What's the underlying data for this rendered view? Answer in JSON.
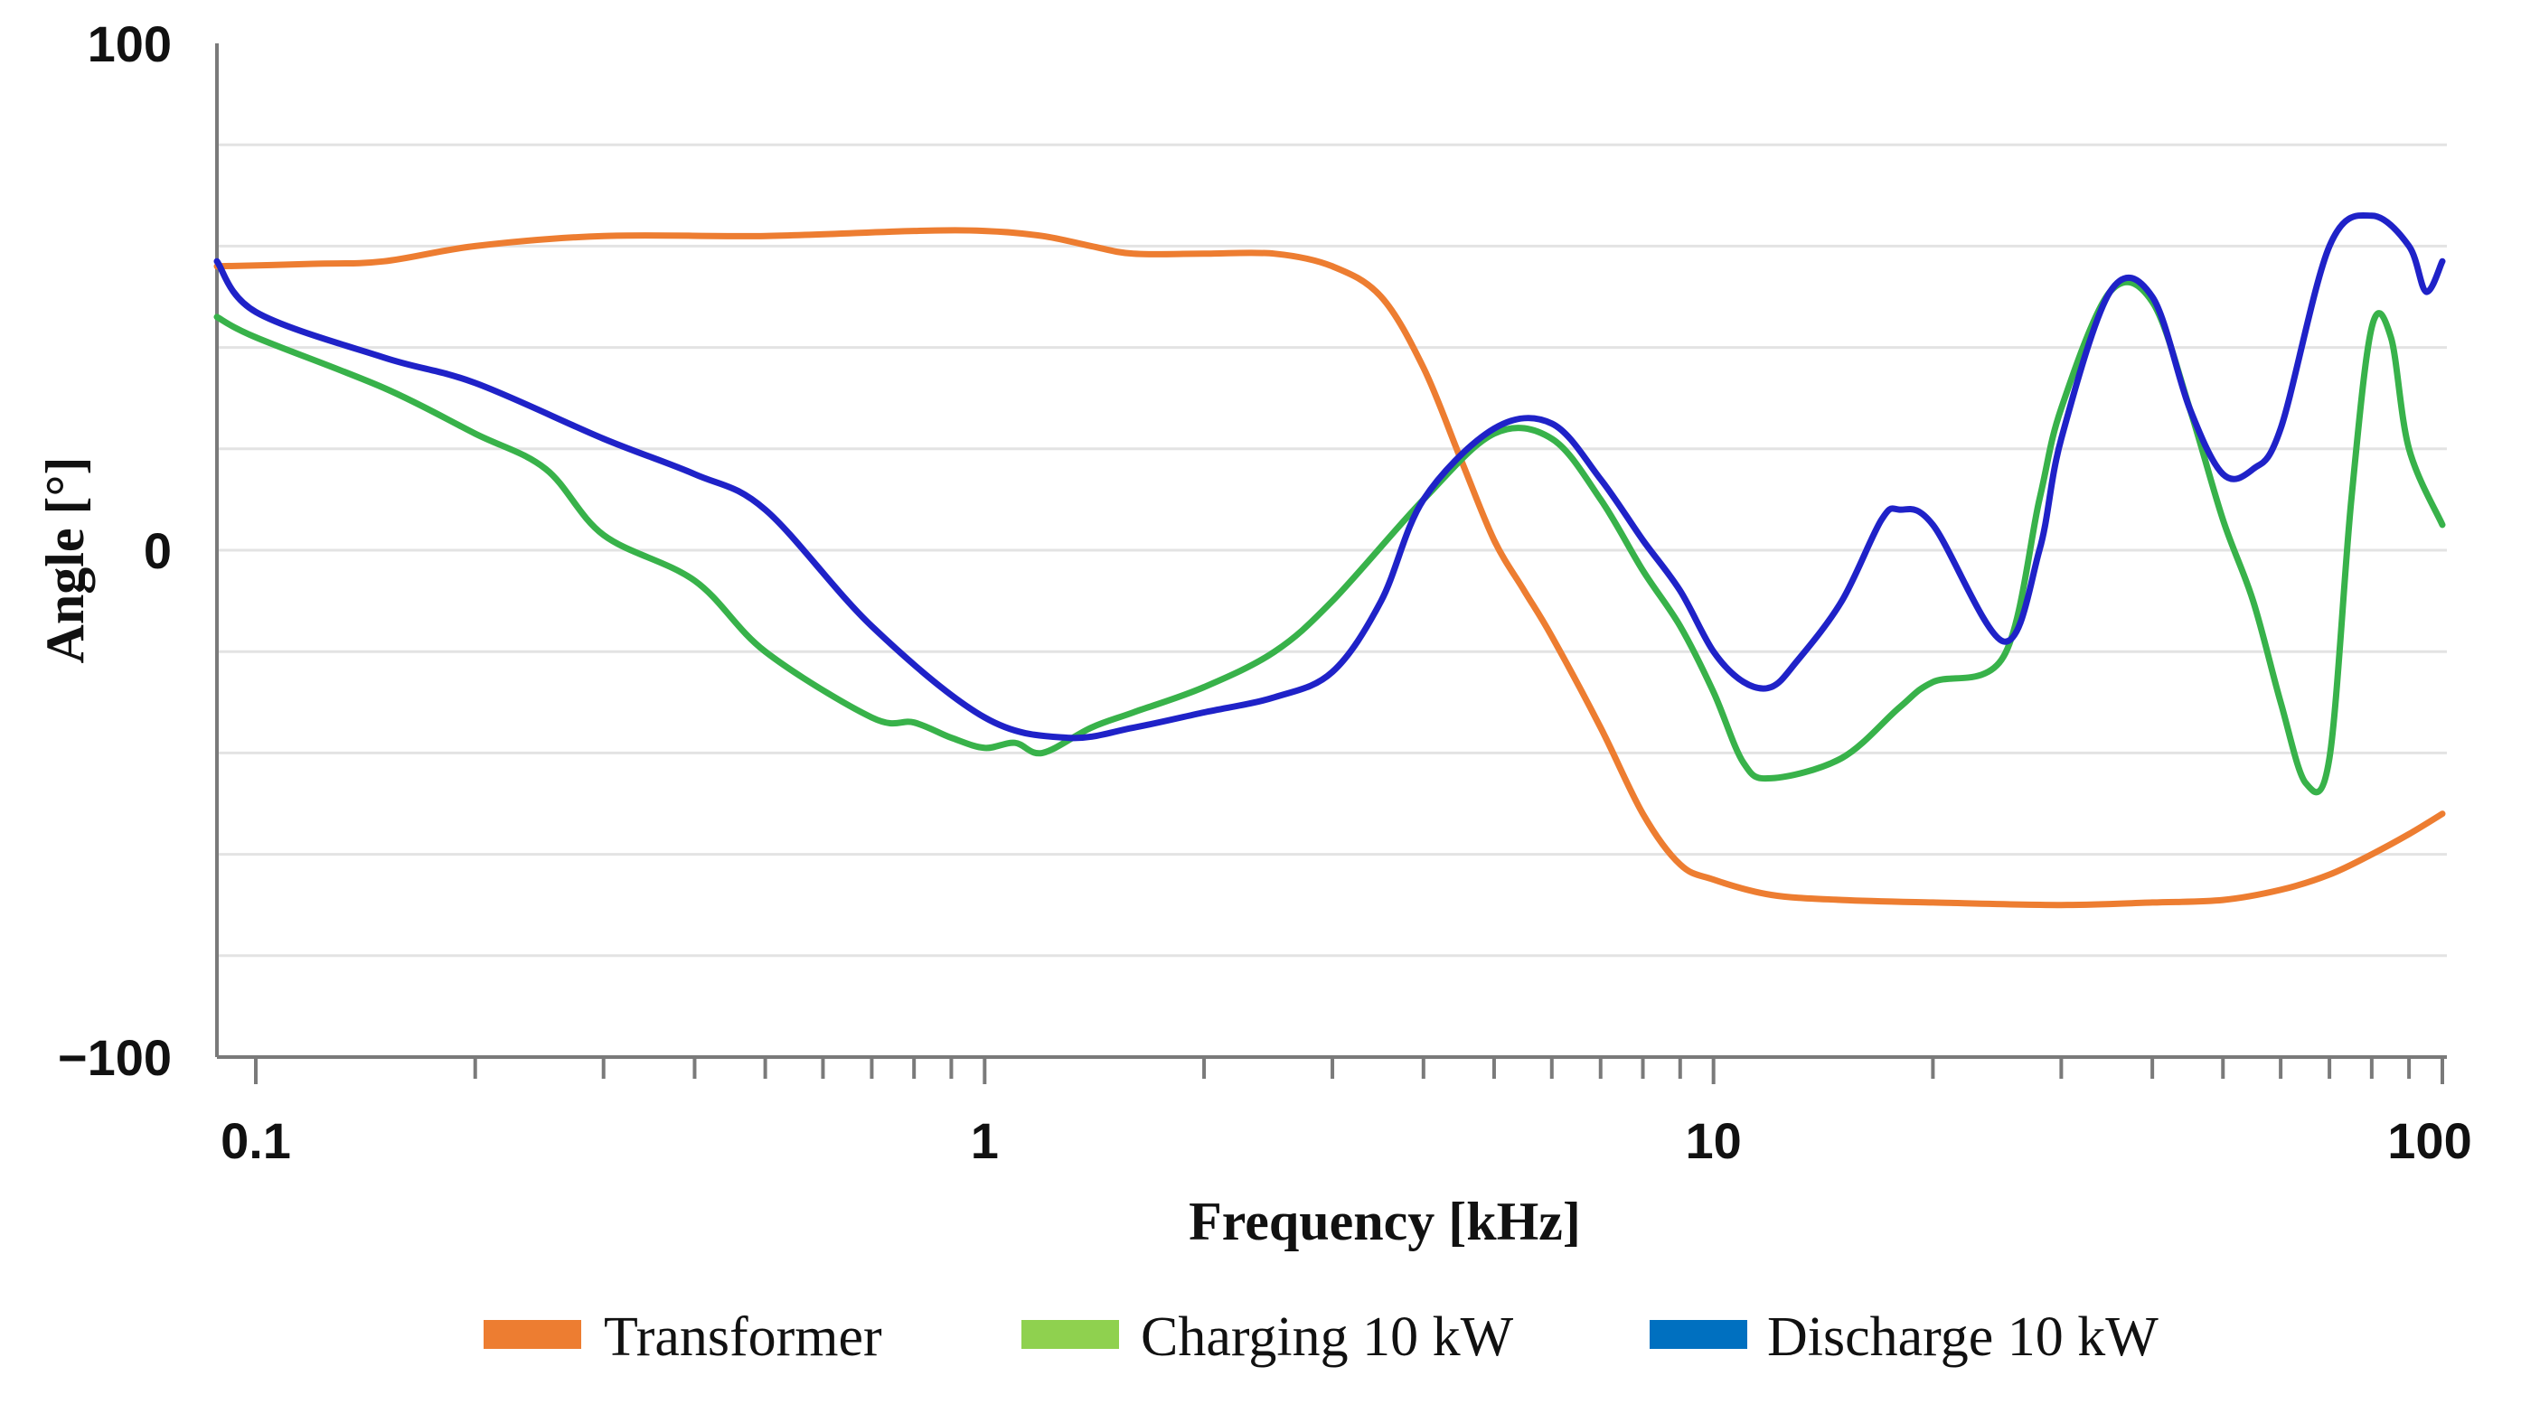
{
  "chart_data": {
    "type": "line",
    "title": "",
    "xlabel": "Frequency [kHz]",
    "ylabel": "Angle [°]",
    "x_scale": "log",
    "xlim": [
      0.085,
      100
    ],
    "ylim": [
      -100,
      100
    ],
    "x_ticks": [
      {
        "value": 0.1,
        "label": "0.1"
      },
      {
        "value": 1,
        "label": "1"
      },
      {
        "value": 10,
        "label": "10"
      },
      {
        "value": 100,
        "label": "100"
      }
    ],
    "y_ticks": [
      {
        "value": 100,
        "label": "100"
      },
      {
        "value": 0,
        "label": "0"
      },
      {
        "value": -100,
        "label": "−100"
      }
    ],
    "y_gridlines": [
      80,
      60,
      40,
      20,
      0,
      -20,
      -40,
      -60,
      -80
    ],
    "series": [
      {
        "name": "Transformer",
        "color": "#ed7d31",
        "x": [
          0.085,
          0.12,
          0.15,
          0.2,
          0.3,
          0.5,
          0.8,
          1.0,
          1.2,
          1.4,
          1.6,
          2,
          2.5,
          3,
          3.5,
          4,
          4.5,
          5,
          5.5,
          6,
          7,
          8,
          9,
          10,
          12,
          15,
          20,
          30,
          40,
          50,
          60,
          70,
          80,
          90,
          100
        ],
        "y": [
          56,
          56.5,
          57,
          60,
          62,
          62,
          63,
          63,
          62,
          60,
          58.5,
          58.5,
          58.5,
          56,
          50,
          36,
          18,
          2,
          -8,
          -17,
          -35,
          -52,
          -62,
          -65,
          -68,
          -69,
          -69.5,
          -70,
          -69.5,
          -69,
          -67,
          -64,
          -60,
          -56,
          -52
        ]
      },
      {
        "name": "Charging 10 kW",
        "color": "#38b24a",
        "x": [
          0.085,
          0.1,
          0.15,
          0.2,
          0.25,
          0.3,
          0.4,
          0.5,
          0.7,
          0.8,
          0.9,
          1.0,
          1.1,
          1.2,
          1.4,
          1.6,
          2,
          2.5,
          3,
          4,
          5,
          6,
          7,
          8,
          9,
          10,
          11,
          12,
          15,
          18,
          20,
          25,
          28,
          30,
          35,
          40,
          45,
          50,
          55,
          60,
          65,
          70,
          75,
          80,
          85,
          90,
          100
        ],
        "y": [
          46,
          42,
          32,
          23,
          16,
          3,
          -6,
          -20,
          -33,
          -34,
          -37,
          -39,
          -38,
          -40,
          -35,
          -32,
          -27,
          -20,
          -10,
          10,
          23,
          22,
          10,
          -4,
          -15,
          -28,
          -42,
          -45,
          -41,
          -31,
          -26,
          -21,
          10,
          28,
          51,
          49,
          28,
          6,
          -10,
          -30,
          -46,
          -41,
          10,
          44,
          42,
          20,
          5
        ]
      },
      {
        "name": "Discharge 10 kW",
        "color": "#1f22c8",
        "x": [
          0.085,
          0.1,
          0.15,
          0.2,
          0.3,
          0.4,
          0.5,
          0.7,
          1.0,
          1.3,
          1.6,
          2,
          2.5,
          3,
          3.5,
          4,
          5,
          6,
          7,
          8,
          9,
          10,
          11,
          12,
          13,
          15,
          17,
          18,
          20,
          25,
          28,
          30,
          35,
          40,
          45,
          50,
          55,
          60,
          70,
          80,
          90,
          95,
          100
        ],
        "y": [
          57,
          47,
          38,
          33,
          22,
          15,
          8,
          -15,
          -33,
          -37,
          -35,
          -32,
          -29,
          -24,
          -10,
          10,
          24,
          25,
          14,
          2,
          -8,
          -20,
          -26,
          -27,
          -22,
          -10,
          6,
          8,
          5,
          -18,
          0,
          22,
          51,
          50,
          28,
          15,
          16,
          24,
          60,
          66,
          60,
          51,
          57
        ]
      }
    ],
    "legend": {
      "position": "bottom",
      "entries": [
        "Transformer",
        "Charging 10 kW",
        "Discharge 10 kW"
      ],
      "swatch_colors": [
        "#ed7d31",
        "#8fd14f",
        "#0070c0"
      ]
    }
  }
}
